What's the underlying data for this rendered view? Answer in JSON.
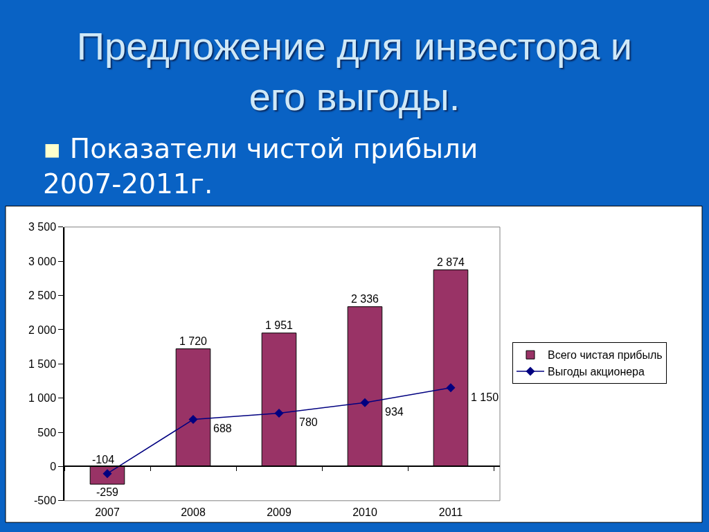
{
  "chart_data": {
    "type": "bar",
    "title": "Предложение для инвестора и его выгоды.",
    "subtitle": "▪ Показатели чистой прибыли 2007-2011г.",
    "categories": [
      "2007",
      "2008",
      "2009",
      "2010",
      "2011"
    ],
    "series": [
      {
        "name": "Всего чистая прибыль",
        "color": "#993366",
        "values": [
          -259,
          1720,
          1951,
          2336,
          2874
        ],
        "value_labels": [
          "-259",
          "1 720",
          "1 951",
          "2 336",
          "2 874"
        ]
      },
      {
        "name": "Выгоды акционера",
        "type": "line",
        "color": "#000080",
        "marker": "diamond",
        "values": [
          -104,
          688,
          780,
          934,
          1150
        ],
        "value_labels": [
          "-104",
          "688",
          "780",
          "934",
          "1 150"
        ]
      }
    ],
    "ylim": [
      -500,
      3500
    ],
    "yticks": [
      -500,
      0,
      500,
      {
        "value": 1000,
        "label": "1 000"
      },
      {
        "value": 1500,
        "label": "1 500"
      },
      {
        "value": 2000,
        "label": "2 000"
      },
      {
        "value": 2500,
        "label": "2 500"
      },
      {
        "value": 3000,
        "label": "3 000"
      },
      {
        "value": 3500,
        "label": "3 500"
      }
    ],
    "legend": "right"
  }
}
